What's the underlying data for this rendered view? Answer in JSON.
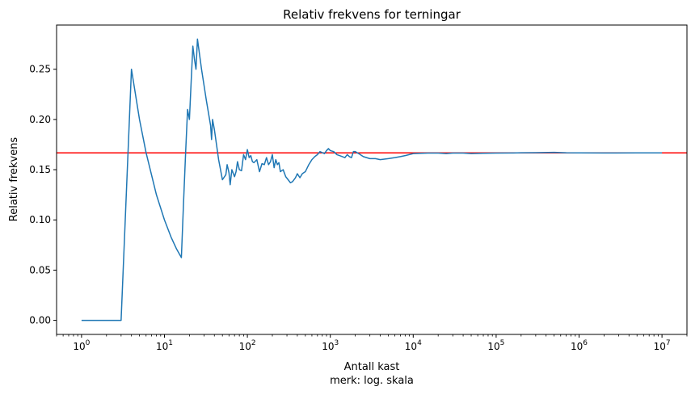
{
  "chart_data": {
    "type": "line",
    "title": "Relativ frekvens for terningar",
    "xlabel": "Antall kast",
    "xlabel_note": "merk: log. skala",
    "ylabel": "Relativ frekvens",
    "xscale": "log",
    "xlim": [
      0.5,
      20000000
    ],
    "ylim": [
      -0.014,
      0.294
    ],
    "grid": false,
    "yticks": [
      {
        "value": 0.0,
        "label": "0.00"
      },
      {
        "value": 0.05,
        "label": "0.05"
      },
      {
        "value": 0.1,
        "label": "0.10"
      },
      {
        "value": 0.15,
        "label": "0.15"
      },
      {
        "value": 0.2,
        "label": "0.20"
      },
      {
        "value": 0.25,
        "label": "0.25"
      }
    ],
    "xticks": [
      {
        "value": 1,
        "base": "10",
        "exp": "0"
      },
      {
        "value": 10,
        "base": "10",
        "exp": "1"
      },
      {
        "value": 100,
        "base": "10",
        "exp": "2"
      },
      {
        "value": 1000,
        "base": "10",
        "exp": "3"
      },
      {
        "value": 10000,
        "base": "10",
        "exp": "4"
      },
      {
        "value": 100000,
        "base": "10",
        "exp": "5"
      },
      {
        "value": 1000000,
        "base": "10",
        "exp": "6"
      },
      {
        "value": 10000000,
        "base": "10",
        "exp": "7"
      }
    ],
    "reference_line": {
      "y": 0.1667,
      "color": "#ff0000"
    },
    "series": [
      {
        "color": "#1f77b4",
        "x": [
          1,
          3,
          4,
          5,
          6,
          8,
          10,
          12,
          14,
          16,
          17,
          18,
          19,
          20,
          21,
          22,
          23,
          24,
          25,
          28,
          32,
          36,
          37,
          38,
          40,
          45,
          50,
          55,
          57,
          60,
          62,
          65,
          70,
          73,
          76,
          80,
          85,
          90,
          95,
          100,
          105,
          110,
          115,
          120,
          130,
          140,
          150,
          160,
          170,
          180,
          190,
          200,
          210,
          220,
          230,
          240,
          250,
          270,
          290,
          310,
          330,
          350,
          380,
          400,
          430,
          460,
          500,
          550,
          600,
          650,
          700,
          750,
          800,
          850,
          900,
          950,
          1000,
          1100,
          1200,
          1300,
          1400,
          1500,
          1600,
          1700,
          1800,
          1900,
          2000,
          2200,
          2500,
          3000,
          3500,
          4000,
          5000,
          6000,
          7000,
          8000,
          10000,
          15000,
          20000,
          25000,
          30000,
          40000,
          50000,
          70000,
          100000,
          150000,
          200000,
          300000,
          500000,
          700000,
          1000000,
          2000000,
          5000000,
          10000000
        ],
        "y": [
          0.0,
          0.0,
          0.25,
          0.2,
          0.167,
          0.125,
          0.1,
          0.083,
          0.071,
          0.0625,
          0.118,
          0.167,
          0.21,
          0.2,
          0.238,
          0.273,
          0.26,
          0.25,
          0.28,
          0.25,
          0.219,
          0.194,
          0.18,
          0.2,
          0.19,
          0.16,
          0.14,
          0.145,
          0.155,
          0.147,
          0.135,
          0.15,
          0.143,
          0.148,
          0.158,
          0.15,
          0.149,
          0.165,
          0.16,
          0.17,
          0.162,
          0.164,
          0.158,
          0.157,
          0.16,
          0.148,
          0.156,
          0.155,
          0.162,
          0.155,
          0.158,
          0.165,
          0.152,
          0.16,
          0.155,
          0.157,
          0.148,
          0.15,
          0.143,
          0.14,
          0.137,
          0.138,
          0.142,
          0.146,
          0.142,
          0.146,
          0.148,
          0.155,
          0.16,
          0.163,
          0.165,
          0.168,
          0.167,
          0.166,
          0.169,
          0.171,
          0.169,
          0.168,
          0.165,
          0.164,
          0.163,
          0.162,
          0.165,
          0.163,
          0.162,
          0.168,
          0.168,
          0.166,
          0.163,
          0.161,
          0.161,
          0.16,
          0.161,
          0.162,
          0.163,
          0.164,
          0.166,
          0.1665,
          0.1665,
          0.166,
          0.1665,
          0.1665,
          0.166,
          0.1663,
          0.1665,
          0.1666,
          0.1668,
          0.1669,
          0.1672,
          0.1668,
          0.1667,
          0.1666,
          0.1667,
          0.1667
        ]
      }
    ]
  }
}
